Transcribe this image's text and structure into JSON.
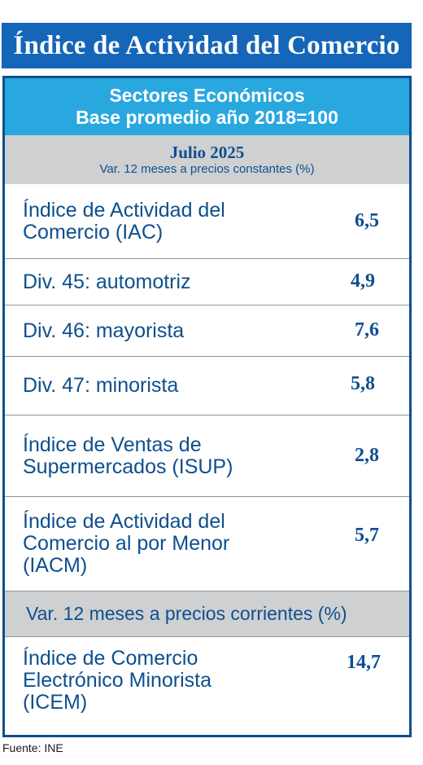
{
  "title": "Índice de Actividad del Comercio",
  "subheader": {
    "line1": "Sectores Económicos",
    "line2": "Base promedio año 2018=100"
  },
  "period": {
    "month": "Julio 2025",
    "note": "Var. 12 meses a precios constantes (%)"
  },
  "rows": [
    {
      "label": "Índice de Actividad del Comercio (IAC)",
      "value": "6,5"
    },
    {
      "label": "Div. 45: automotriz",
      "value": "4,9"
    },
    {
      "label": "Div. 46: mayorista",
      "value": "7,6"
    },
    {
      "label": "Div. 47: minorista",
      "value": "5,8"
    },
    {
      "label": "Índice de Ventas de Supermercados (ISUP)",
      "value": "2,8"
    },
    {
      "label": "Índice de Actividad del Comercio al por Menor (IACM)",
      "value": "5,7"
    }
  ],
  "section2": {
    "label": "Var. 12 meses a precios corrientes (%)",
    "rows": [
      {
        "label": "Índice de Comercio Electrónico Minorista (ICEM)",
        "value": "14,7"
      }
    ]
  },
  "source": "Fuente: INE"
}
